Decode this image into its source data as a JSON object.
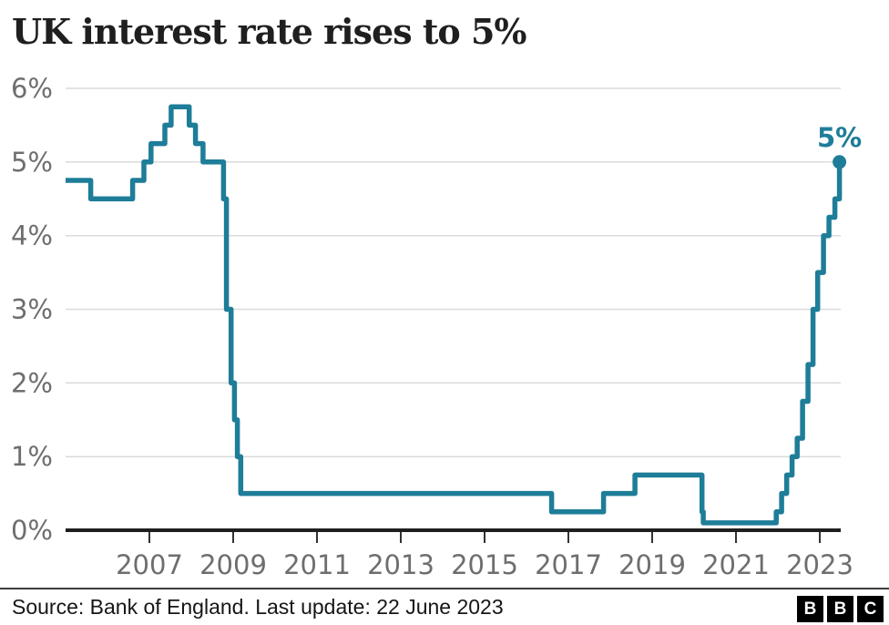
{
  "title": "UK interest rate rises to 5%",
  "footer": {
    "source": "Source: Bank of England. Last update: 22 June 2023",
    "logo_letters": [
      "B",
      "B",
      "C"
    ]
  },
  "chart_data": {
    "type": "line",
    "line_style": "step-after",
    "title": "UK interest rate rises to 5%",
    "xlabel": "",
    "ylabel": "",
    "unit": "%",
    "x_domain": [
      2005.0,
      2023.5
    ],
    "y_domain": [
      0,
      6
    ],
    "x_ticks": [
      2007,
      2009,
      2011,
      2013,
      2015,
      2017,
      2019,
      2021,
      2023
    ],
    "y_ticks": [
      0,
      1,
      2,
      3,
      4,
      5,
      6
    ],
    "y_tick_suffix": "%",
    "grid": true,
    "legend": "none",
    "colors": {
      "line": "#1E7D98",
      "grid": "#DBDBDB",
      "baseline": "#1f1f1f",
      "tick": "#333333",
      "label": "#6e6e6e"
    },
    "end_annotation": {
      "text": "5%",
      "x": 2023.47,
      "y": 5.0
    },
    "series": [
      {
        "name": "UK interest rate",
        "points": [
          [
            2005.0,
            4.75
          ],
          [
            2005.6,
            4.5
          ],
          [
            2006.6,
            4.75
          ],
          [
            2006.87,
            5.0
          ],
          [
            2007.04,
            5.25
          ],
          [
            2007.37,
            5.5
          ],
          [
            2007.52,
            5.75
          ],
          [
            2007.95,
            5.5
          ],
          [
            2008.1,
            5.25
          ],
          [
            2008.28,
            5.0
          ],
          [
            2008.77,
            4.5
          ],
          [
            2008.84,
            3.0
          ],
          [
            2008.95,
            2.0
          ],
          [
            2009.03,
            1.5
          ],
          [
            2009.1,
            1.0
          ],
          [
            2009.18,
            0.5
          ],
          [
            2016.6,
            0.25
          ],
          [
            2017.84,
            0.5
          ],
          [
            2018.59,
            0.75
          ],
          [
            2020.19,
            0.25
          ],
          [
            2020.22,
            0.1
          ],
          [
            2021.96,
            0.25
          ],
          [
            2022.09,
            0.5
          ],
          [
            2022.21,
            0.75
          ],
          [
            2022.34,
            1.0
          ],
          [
            2022.46,
            1.25
          ],
          [
            2022.59,
            1.75
          ],
          [
            2022.72,
            2.25
          ],
          [
            2022.84,
            3.0
          ],
          [
            2022.95,
            3.5
          ],
          [
            2023.09,
            4.0
          ],
          [
            2023.22,
            4.25
          ],
          [
            2023.36,
            4.5
          ],
          [
            2023.47,
            5.0
          ]
        ]
      }
    ]
  }
}
